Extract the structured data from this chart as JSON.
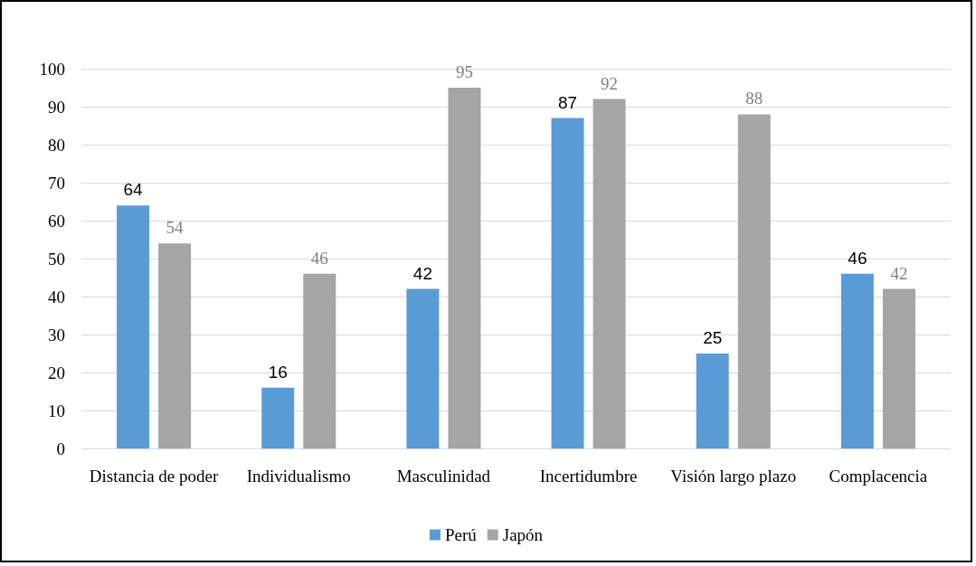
{
  "chart_data": {
    "type": "bar",
    "categories": [
      "Distancia de poder",
      "Individualismo",
      "Masculinidad",
      "Incertidumbre",
      "Visión largo plazo",
      "Complacencia"
    ],
    "series": [
      {
        "name": "Perú",
        "color": "#5b9bd5",
        "values": [
          64,
          16,
          42,
          87,
          25,
          46
        ]
      },
      {
        "name": "Japón",
        "color": "#a5a5a5",
        "values": [
          54,
          46,
          95,
          92,
          88,
          42
        ]
      }
    ],
    "ylim": [
      0,
      100
    ],
    "yticks": [
      0,
      10,
      20,
      30,
      40,
      50,
      60,
      70,
      80,
      90,
      100
    ],
    "grid": "y",
    "legend": "bottom",
    "data_labels": true
  }
}
